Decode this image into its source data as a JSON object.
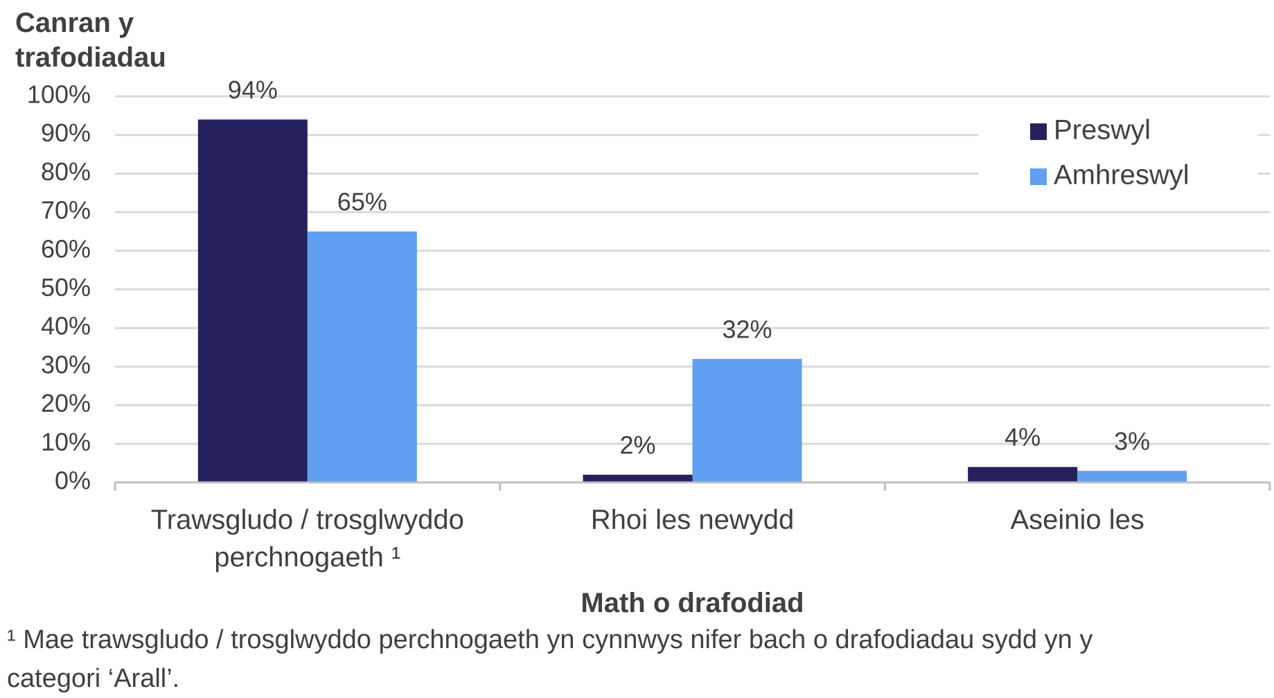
{
  "chart_data": {
    "type": "bar",
    "ylabel": "Canran y trafodiadau",
    "xlabel": "Math o drafodiad",
    "footnote": "¹ Mae trawsgludo / trosglwyddo perchnogaeth yn cynnwys nifer bach o drafodiadau sydd yn y categori ‘Arall’.",
    "categories": [
      "Trawsgludo / trosglwyddo perchnogaeth ¹",
      "Rhoi les newydd",
      "Aseinio les"
    ],
    "series": [
      {
        "name": "Preswyl",
        "color": "#25215e",
        "values": [
          94,
          2,
          4
        ],
        "value_labels": [
          "94%",
          "2%",
          "4%"
        ]
      },
      {
        "name": "Amhreswyl",
        "color": "#619ff0",
        "values": [
          65,
          32,
          3
        ],
        "value_labels": [
          "65%",
          "32%",
          "3%"
        ]
      }
    ],
    "ylim": [
      0,
      100
    ],
    "yticks": [
      {
        "value": 0,
        "label": "0%"
      },
      {
        "value": 10,
        "label": "10%"
      },
      {
        "value": 20,
        "label": "20%"
      },
      {
        "value": 30,
        "label": "30%"
      },
      {
        "value": 40,
        "label": "40%"
      },
      {
        "value": 50,
        "label": "50%"
      },
      {
        "value": 60,
        "label": "60%"
      },
      {
        "value": 70,
        "label": "70%"
      },
      {
        "value": 80,
        "label": "80%"
      },
      {
        "value": 90,
        "label": "90%"
      },
      {
        "value": 100,
        "label": "100%"
      }
    ],
    "grid": true,
    "legend": "top-right"
  }
}
